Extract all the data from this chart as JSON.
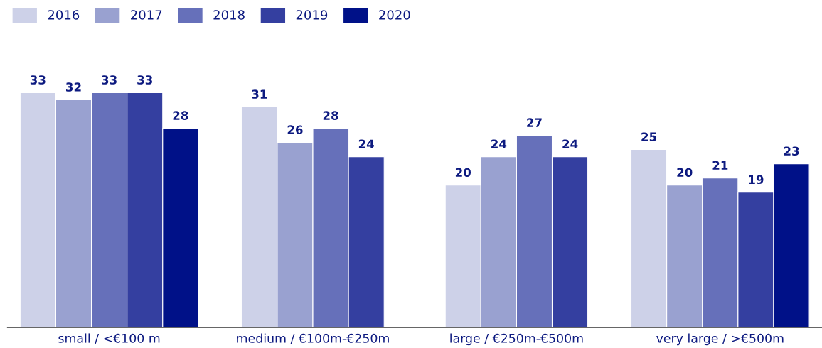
{
  "chart_data": {
    "type": "bar",
    "categories": [
      "small / <€100 m",
      "medium / €100m-€250m",
      "large / €250m-€500m",
      "very large / >€500m"
    ],
    "series": [
      {
        "name": "2016",
        "color": "#cdd1e8",
        "values": [
          33,
          31,
          20,
          25
        ]
      },
      {
        "name": "2017",
        "color": "#99a1d0",
        "values": [
          32,
          26,
          24,
          20
        ]
      },
      {
        "name": "2018",
        "color": "#6670ba",
        "values": [
          33,
          28,
          27,
          21
        ]
      },
      {
        "name": "2019",
        "color": "#343fa0",
        "values": [
          33,
          24,
          24,
          19
        ]
      },
      {
        "name": "2020",
        "color": "#001188",
        "values": [
          28,
          null,
          null,
          23
        ]
      }
    ],
    "data_labels": true,
    "legend": "top left",
    "grid": false,
    "tick_labels": "x"
  }
}
